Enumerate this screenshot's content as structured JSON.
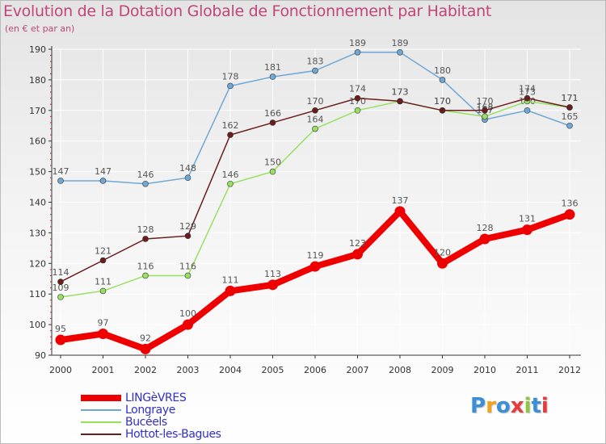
{
  "chart_data": {
    "type": "line",
    "title": "Evolution de la Dotation Globale de Fonctionnement par Habitant",
    "subtitle": "(en € et par an)",
    "x": [
      "2000",
      "2001",
      "2002",
      "2003",
      "2004",
      "2005",
      "2006",
      "2007",
      "2008",
      "2009",
      "2010",
      "2011",
      "2012"
    ],
    "ylim": [
      90,
      190
    ],
    "yticks": [
      90,
      100,
      110,
      120,
      130,
      140,
      150,
      160,
      170,
      180,
      190
    ],
    "series": [
      {
        "name": "LINGèVRES",
        "color": "#ee0000",
        "values": [
          95,
          97,
          92,
          100,
          111,
          113,
          119,
          123,
          137,
          120,
          128,
          131,
          136
        ],
        "emphasis": true
      },
      {
        "name": "Longraye",
        "color": "#6fa8d6",
        "values": [
          147,
          147,
          146,
          148,
          178,
          181,
          183,
          189,
          189,
          180,
          167,
          170,
          165
        ]
      },
      {
        "name": "Bucéels",
        "color": "#99e062",
        "values": [
          109,
          111,
          116,
          116,
          146,
          150,
          164,
          170,
          173,
          170,
          168,
          173,
          171
        ]
      },
      {
        "name": "Hottot-les-Bagues",
        "color": "#6b1c1c",
        "values": [
          114,
          121,
          128,
          129,
          162,
          166,
          170,
          174,
          173,
          170,
          170,
          174,
          171
        ]
      }
    ]
  },
  "logo": {
    "letters": [
      "P",
      "r",
      "o",
      "x",
      "i",
      "t",
      "i"
    ],
    "colors": [
      "#3a8fd8",
      "#f3a21a",
      "#3a8fd8",
      "#e83a3a",
      "#8fc63f",
      "#3a8fd8",
      "#e83a3a"
    ]
  }
}
